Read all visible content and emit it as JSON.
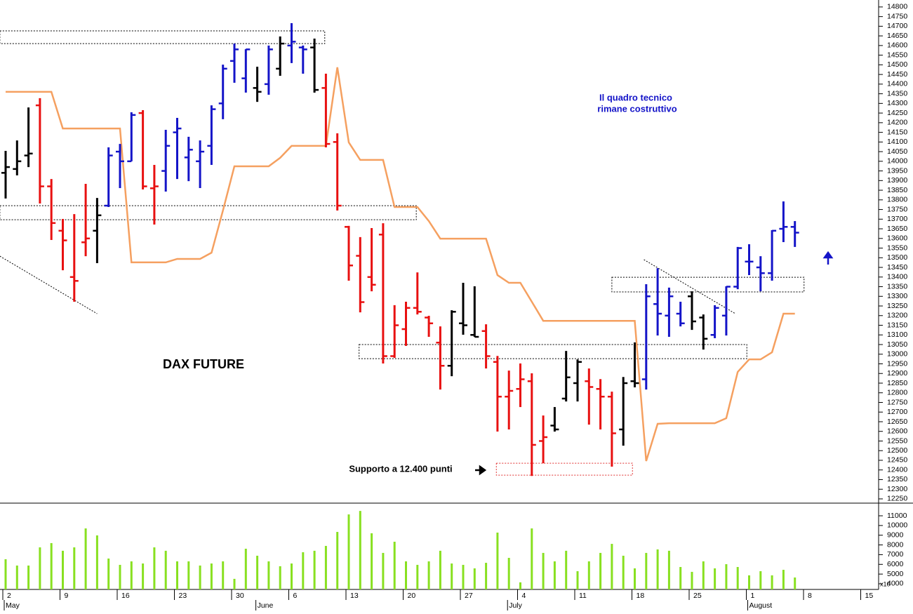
{
  "chart_data": {
    "type": "ohlc",
    "title": "DAX FUTURE",
    "annotations": [
      {
        "lines": [
          "Il quadro tecnico",
          "rimane costruttivo"
        ],
        "color": "#1414c8"
      },
      {
        "lines": [
          "Supporto a 12.400 punti"
        ],
        "color": "#000000"
      }
    ],
    "categories": [
      "2",
      null,
      null,
      null,
      null,
      "9",
      null,
      null,
      null,
      null,
      "16",
      null,
      null,
      null,
      null,
      "23",
      null,
      null,
      null,
      null,
      "30",
      null,
      null,
      null,
      null,
      "6",
      null,
      null,
      null,
      null,
      "13",
      null,
      null,
      null,
      null,
      "20",
      null,
      null,
      null,
      null,
      "27",
      null,
      null,
      null,
      null,
      "4",
      null,
      null,
      null,
      null,
      "11",
      null,
      null,
      null,
      null,
      "18",
      null,
      null,
      null,
      null,
      "25",
      null,
      null,
      null,
      null,
      "1",
      null,
      null,
      null,
      null,
      "8",
      null,
      null,
      null,
      null,
      "15",
      null
    ],
    "months": [
      "May",
      null,
      null,
      null,
      null,
      null,
      null,
      null,
      null,
      null,
      null,
      null,
      null,
      null,
      null,
      null,
      null,
      null,
      null,
      null,
      null,
      null,
      "June",
      null,
      null,
      null,
      null,
      null,
      null,
      null,
      null,
      null,
      null,
      null,
      null,
      null,
      null,
      null,
      null,
      null,
      null,
      null,
      null,
      null,
      "July",
      null,
      null,
      null,
      null,
      null,
      null,
      null,
      null,
      null,
      null,
      null,
      null,
      null,
      null,
      null,
      null,
      null,
      null,
      null,
      null,
      "August",
      null,
      null,
      null,
      null,
      null,
      null,
      null,
      null,
      null,
      null,
      null
    ],
    "open": [
      13940,
      13960,
      14030,
      14290,
      13870,
      13640,
      13400,
      13580,
      13640,
      13770,
      14050,
      14000,
      14250,
      13860,
      13950,
      14150,
      14020,
      14000,
      14080,
      14300,
      14520,
      14430,
      14380,
      14400,
      14480,
      14600,
      14590,
      14590,
      14380,
      14100,
      13660,
      13510,
      13400,
      13620,
      12990,
      13130,
      13240,
      13190,
      13060,
      12940,
      13160,
      13100,
      13120,
      12960,
      12780,
      12820,
      12860,
      12550,
      12630,
      12770,
      12850,
      12860,
      12820,
      12780,
      12610,
      12860,
      12870,
      13260,
      13200,
      13210,
      13300,
      13190,
      13100,
      13200,
      13350,
      13480,
      13450,
      13420,
      13650,
      13660,
      null,
      null,
      null,
      null,
      null,
      null,
      null
    ],
    "high": [
      14054,
      14108,
      14279,
      14327,
      13908,
      13701,
      13726,
      13883,
      13810,
      14072,
      14090,
      14254,
      14265,
      13981,
      14163,
      14225,
      14127,
      14108,
      14290,
      14501,
      14610,
      14581,
      14490,
      14600,
      14647,
      14716,
      14600,
      14636,
      14454,
      14145,
      13665,
      13607,
      13654,
      13679,
      13254,
      13272,
      13424,
      13199,
      13144,
      13228,
      13370,
      13352,
      13155,
      12991,
      12915,
      12952,
      12901,
      12682,
      12726,
      13017,
      12973,
      12926,
      12871,
      12806,
      12882,
      13061,
      13363,
      13446,
      13345,
      13272,
      13326,
      13206,
      13254,
      13352,
      13556,
      13570,
      13508,
      13643,
      13792,
      13690,
      null,
      null,
      null,
      null,
      null,
      null,
      null
    ],
    "low": [
      13807,
      13927,
      13970,
      13781,
      13592,
      13435,
      13272,
      13508,
      13472,
      13763,
      13861,
      14000,
      13854,
      13672,
      13843,
      13908,
      13897,
      13861,
      13981,
      14218,
      14407,
      14356,
      14308,
      14345,
      14443,
      14509,
      14454,
      14356,
      14072,
      13745,
      13381,
      13217,
      13326,
      12952,
      12981,
      13043,
      13206,
      13090,
      12817,
      12886,
      13101,
      13090,
      12926,
      12599,
      12610,
      12726,
      12369,
      12435,
      12599,
      12755,
      12755,
      12635,
      12610,
      12417,
      12526,
      12828,
      12817,
      13097,
      13090,
      13144,
      13126,
      13024,
      13083,
      13097,
      13337,
      13410,
      13326,
      13381,
      13581,
      13556,
      null,
      null,
      null,
      null,
      null,
      null,
      null
    ],
    "close": [
      13970,
      14000,
      14040,
      13870,
      13680,
      13590,
      13380,
      13600,
      13720,
      14030,
      14000,
      14240,
      13870,
      13870,
      14080,
      14170,
      14060,
      14050,
      14270,
      14480,
      14580,
      14580,
      14360,
      14580,
      14610,
      14620,
      14580,
      14370,
      14090,
      13770,
      13460,
      13270,
      13360,
      12990,
      13150,
      13240,
      13220,
      13160,
      12940,
      13220,
      13150,
      13090,
      12990,
      12780,
      12810,
      12870,
      12530,
      12570,
      12610,
      12880,
      12960,
      12830,
      12780,
      12590,
      12850,
      12850,
      13300,
      13210,
      13300,
      13160,
      13170,
      13080,
      13240,
      13350,
      13550,
      13480,
      13420,
      13640,
      13660,
      13630,
      null,
      null,
      null,
      null,
      null,
      null,
      null
    ],
    "bar_colors": [
      "#000000",
      "#000000",
      "#000000",
      "#e81010",
      "#e81010",
      "#e81010",
      "#e81010",
      "#e81010",
      "#000000",
      "#1414c8",
      "#1414c8",
      "#1414c8",
      "#e81010",
      "#e81010",
      "#1414c8",
      "#1414c8",
      "#1414c8",
      "#1414c8",
      "#1414c8",
      "#1414c8",
      "#1414c8",
      "#1414c8",
      "#000000",
      "#1414c8",
      "#000000",
      "#1414c8",
      "#1414c8",
      "#000000",
      "#e81010",
      "#e81010",
      "#e81010",
      "#e81010",
      "#e81010",
      "#e81010",
      "#e81010",
      "#e81010",
      "#e81010",
      "#e81010",
      "#e81010",
      "#000000",
      "#000000",
      "#000000",
      "#e81010",
      "#e81010",
      "#e81010",
      "#e81010",
      "#e81010",
      "#e81010",
      "#000000",
      "#000000",
      "#000000",
      "#e81010",
      "#e81010",
      "#e81010",
      "#000000",
      "#000000",
      "#1414c8",
      "#1414c8",
      "#1414c8",
      "#1414c8",
      "#000000",
      "#000000",
      "#1414c8",
      "#1414c8",
      "#1414c8",
      "#1414c8",
      "#1414c8",
      "#1414c8",
      "#1414c8",
      "#1414c8"
    ],
    "line": {
      "color": "#f5a060",
      "values": [
        14360,
        14360,
        14360,
        14360,
        14360,
        14170,
        14170,
        14170,
        14170,
        14170,
        14170,
        13476,
        13476,
        13476,
        13476,
        13494,
        13494,
        13494,
        13526,
        13745,
        13974,
        13974,
        13974,
        13974,
        14018,
        14080,
        14080,
        14080,
        14080,
        14487,
        14098,
        14007,
        14007,
        14007,
        13763,
        13763,
        13763,
        13690,
        13599,
        13599,
        13599,
        13599,
        13599,
        13410,
        13370,
        13370,
        13272,
        13173,
        13173,
        13173,
        13173,
        13173,
        13173,
        13173,
        13173,
        13173,
        12446,
        12639,
        12642,
        12642,
        12642,
        12642,
        12642,
        12668,
        12908,
        12973,
        12973,
        13010,
        13210,
        13210,
        null,
        null,
        null,
        null,
        null,
        null,
        null
      ]
    },
    "zones": [
      {
        "x": [
          -0.5,
          27.9
        ],
        "y": [
          14610,
          14676
        ],
        "color": "#000000"
      },
      {
        "x": [
          -0.5,
          35.9
        ],
        "y": [
          13697,
          13770
        ],
        "color": "#000000"
      },
      {
        "x": [
          30.9,
          64.8
        ],
        "y": [
          12977,
          13050
        ],
        "color": "#000000"
      },
      {
        "x": [
          42.9,
          54.8
        ],
        "y": [
          12373,
          12435
        ],
        "color": "#e03030"
      },
      {
        "x": [
          53,
          69.8
        ],
        "y": [
          13323,
          13399
        ],
        "color": "#000000"
      }
    ],
    "trendlines": [
      {
        "x": [
          -0.5,
          8
        ],
        "y": [
          13508,
          13210
        ]
      },
      {
        "x": [
          55.8,
          63.8
        ],
        "y": [
          13490,
          13210
        ]
      }
    ],
    "ylim": [
      12228,
      14836
    ],
    "yticks": [
      12250,
      12300,
      12350,
      12400,
      12450,
      12500,
      12550,
      12600,
      12650,
      12700,
      12750,
      12800,
      12850,
      12900,
      12950,
      13000,
      13050,
      13100,
      13150,
      13200,
      13250,
      13300,
      13350,
      13400,
      13450,
      13500,
      13550,
      13600,
      13650,
      13700,
      13750,
      13800,
      13850,
      13900,
      13950,
      14000,
      14050,
      14100,
      14150,
      14200,
      14250,
      14300,
      14350,
      14400,
      14450,
      14500,
      14550,
      14600,
      14650,
      14700,
      14750,
      14800
    ],
    "volume": {
      "type": "bar",
      "color": "#88e020",
      "unit_label": "x10",
      "values": [
        6530,
        5880,
        5880,
        7750,
        8190,
        7400,
        7750,
        9700,
        8980,
        6600,
        5950,
        6310,
        6090,
        7750,
        7400,
        6310,
        6310,
        5880,
        6090,
        6310,
        4510,
        7610,
        6890,
        6310,
        5810,
        6090,
        7250,
        7400,
        7900,
        9340,
        11140,
        11500,
        9200,
        7180,
        8330,
        6310,
        5950,
        6310,
        7400,
        6090,
        5950,
        5590,
        6160,
        9270,
        6670,
        4150,
        9700,
        7180,
        6310,
        7400,
        5300,
        6310,
        7180,
        8110,
        6890,
        5590,
        7180,
        7540,
        7400,
        5730,
        5230,
        6310,
        5590,
        6020,
        5730,
        4870,
        5300,
        4870,
        5440,
        4650,
        null,
        null,
        null,
        null,
        null,
        null,
        null
      ],
      "ylim": [
        3420,
        12230
      ],
      "yticks": [
        4000,
        5000,
        6000,
        7000,
        8000,
        9000,
        10000,
        11000
      ]
    }
  }
}
